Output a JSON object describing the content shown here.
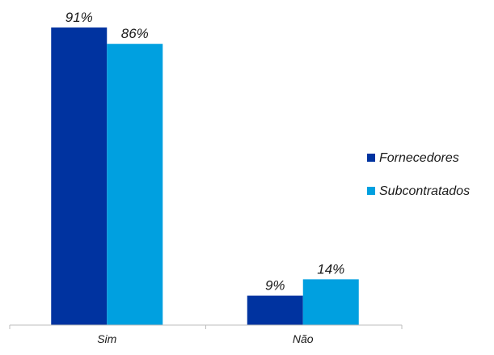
{
  "chart_data": {
    "type": "bar",
    "categories": [
      "Sim",
      "Não"
    ],
    "series": [
      {
        "name": "Fornecedores",
        "values": [
          91,
          9
        ],
        "color": "#0033a0"
      },
      {
        "name": "Subcontratados",
        "values": [
          86,
          14
        ],
        "color": "#00a0e0"
      }
    ],
    "value_suffix": "%",
    "ylim": [
      0,
      100
    ],
    "title": "",
    "xlabel": "",
    "ylabel": "",
    "grid": false,
    "legend_position": "right"
  },
  "colors": {
    "axis": "#bdbdbd",
    "text": "#1a1a1a"
  }
}
